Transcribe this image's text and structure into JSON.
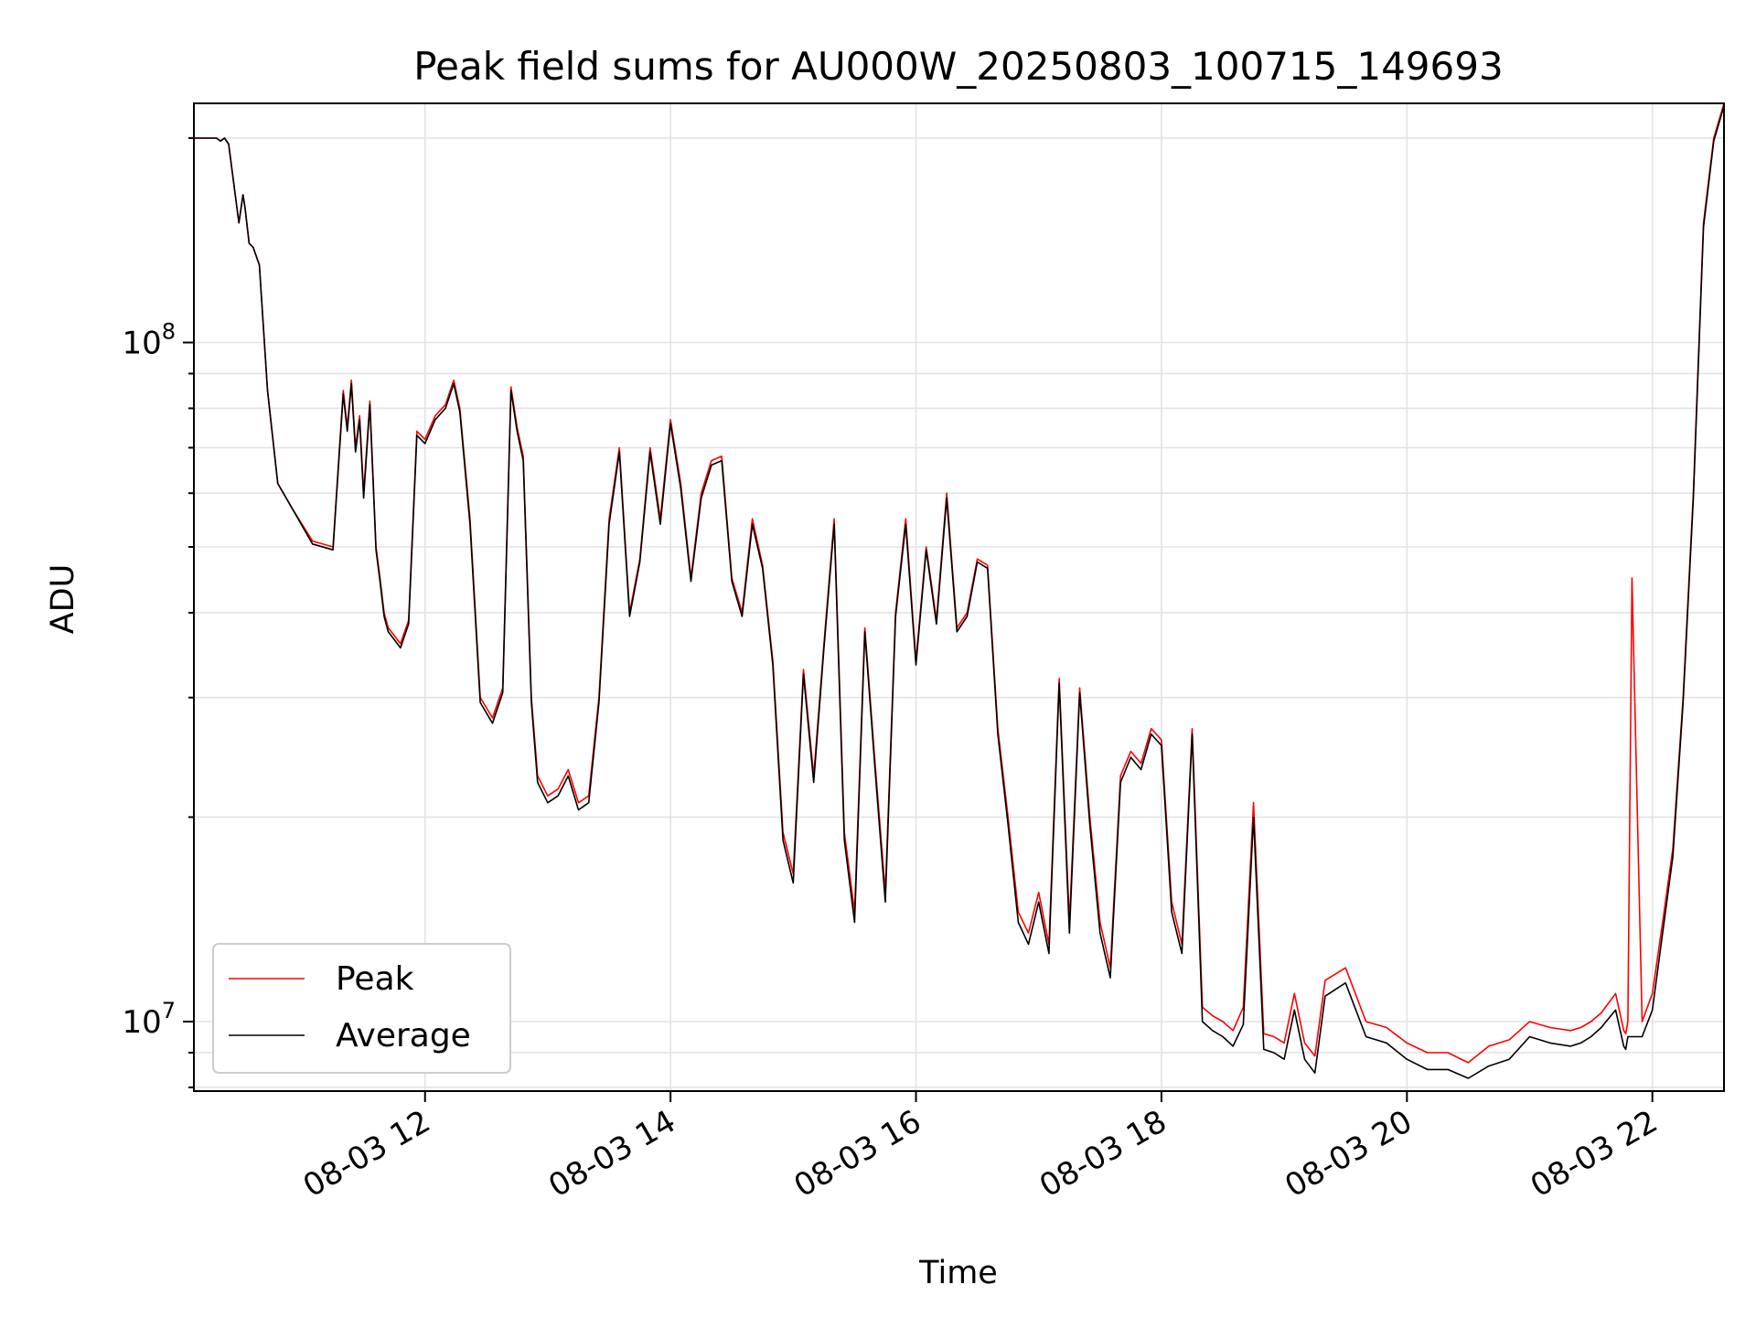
{
  "chart_data": {
    "type": "line",
    "title": "Peak field sums for AU000W_20250803_100715_149693",
    "xlabel": "Time",
    "ylabel": "ADU",
    "yscale": "log",
    "ylim": [
      7900000,
      225000000
    ],
    "xlim": [
      "2025-08-03T10:07",
      "2025-08-03T22:35"
    ],
    "grid": true,
    "legend_placement": "lower-left",
    "x_ticks": [
      "2025-08-03T12:00",
      "2025-08-03T14:00",
      "2025-08-03T16:00",
      "2025-08-03T18:00",
      "2025-08-03T20:00",
      "2025-08-03T22:00"
    ],
    "x_tick_labels": [
      "08-03 12",
      "08-03 14",
      "08-03 16",
      "08-03 18",
      "08-03 20",
      "08-03 22"
    ],
    "y_ticks": [
      10000000,
      100000000
    ],
    "y_tick_base": "10",
    "y_tick_exponents": [
      "7",
      "8"
    ],
    "series": [
      {
        "name": "Peak",
        "color": "#ff0000",
        "x": [
          "2025-08-03T10:07",
          "2025-08-03T10:18",
          "2025-08-03T10:20",
          "2025-08-03T10:22",
          "2025-08-03T10:24",
          "2025-08-03T10:29",
          "2025-08-03T10:31",
          "2025-08-03T10:32",
          "2025-08-03T10:34",
          "2025-08-03T10:36",
          "2025-08-03T10:39",
          "2025-08-03T10:43",
          "2025-08-03T10:48",
          "2025-08-03T10:55",
          "2025-08-03T11:05",
          "2025-08-03T11:15",
          "2025-08-03T11:20",
          "2025-08-03T11:22",
          "2025-08-03T11:24",
          "2025-08-03T11:26",
          "2025-08-03T11:28",
          "2025-08-03T11:30",
          "2025-08-03T11:33",
          "2025-08-03T11:36",
          "2025-08-03T11:38",
          "2025-08-03T11:40",
          "2025-08-03T11:42",
          "2025-08-03T11:45",
          "2025-08-03T11:48",
          "2025-08-03T11:52",
          "2025-08-03T11:56",
          "2025-08-03T12:00",
          "2025-08-03T12:05",
          "2025-08-03T12:10",
          "2025-08-03T12:14",
          "2025-08-03T12:17",
          "2025-08-03T12:22",
          "2025-08-03T12:27",
          "2025-08-03T12:33",
          "2025-08-03T12:38",
          "2025-08-03T12:42",
          "2025-08-03T12:45",
          "2025-08-03T12:48",
          "2025-08-03T12:52",
          "2025-08-03T12:55",
          "2025-08-03T13:00",
          "2025-08-03T13:05",
          "2025-08-03T13:10",
          "2025-08-03T13:15",
          "2025-08-03T13:20",
          "2025-08-03T13:25",
          "2025-08-03T13:30",
          "2025-08-03T13:35",
          "2025-08-03T13:40",
          "2025-08-03T13:45",
          "2025-08-03T13:50",
          "2025-08-03T13:55",
          "2025-08-03T14:00",
          "2025-08-03T14:05",
          "2025-08-03T14:10",
          "2025-08-03T14:15",
          "2025-08-03T14:20",
          "2025-08-03T14:25",
          "2025-08-03T14:30",
          "2025-08-03T14:35",
          "2025-08-03T14:40",
          "2025-08-03T14:45",
          "2025-08-03T14:50",
          "2025-08-03T14:55",
          "2025-08-03T15:00",
          "2025-08-03T15:05",
          "2025-08-03T15:10",
          "2025-08-03T15:15",
          "2025-08-03T15:20",
          "2025-08-03T15:25",
          "2025-08-03T15:30",
          "2025-08-03T15:35",
          "2025-08-03T15:40",
          "2025-08-03T15:45",
          "2025-08-03T15:50",
          "2025-08-03T15:55",
          "2025-08-03T16:00",
          "2025-08-03T16:05",
          "2025-08-03T16:10",
          "2025-08-03T16:15",
          "2025-08-03T16:20",
          "2025-08-03T16:25",
          "2025-08-03T16:30",
          "2025-08-03T16:35",
          "2025-08-03T16:40",
          "2025-08-03T16:45",
          "2025-08-03T16:50",
          "2025-08-03T16:55",
          "2025-08-03T17:00",
          "2025-08-03T17:05",
          "2025-08-03T17:10",
          "2025-08-03T17:15",
          "2025-08-03T17:20",
          "2025-08-03T17:25",
          "2025-08-03T17:30",
          "2025-08-03T17:35",
          "2025-08-03T17:40",
          "2025-08-03T17:45",
          "2025-08-03T17:50",
          "2025-08-03T17:55",
          "2025-08-03T18:00",
          "2025-08-03T18:05",
          "2025-08-03T18:10",
          "2025-08-03T18:15",
          "2025-08-03T18:20",
          "2025-08-03T18:25",
          "2025-08-03T18:30",
          "2025-08-03T18:35",
          "2025-08-03T18:40",
          "2025-08-03T18:45",
          "2025-08-03T18:50",
          "2025-08-03T18:55",
          "2025-08-03T19:00",
          "2025-08-03T19:05",
          "2025-08-03T19:10",
          "2025-08-03T19:15",
          "2025-08-03T19:20",
          "2025-08-03T19:30",
          "2025-08-03T19:40",
          "2025-08-03T19:50",
          "2025-08-03T20:00",
          "2025-08-03T20:10",
          "2025-08-03T20:20",
          "2025-08-03T20:30",
          "2025-08-03T20:40",
          "2025-08-03T20:50",
          "2025-08-03T21:00",
          "2025-08-03T21:10",
          "2025-08-03T21:20",
          "2025-08-03T21:25",
          "2025-08-03T21:30",
          "2025-08-03T21:35",
          "2025-08-03T21:42",
          "2025-08-03T21:46",
          "2025-08-03T21:47",
          "2025-08-03T21:48",
          "2025-08-03T21:50",
          "2025-08-03T21:55",
          "2025-08-03T22:00",
          "2025-08-03T22:05",
          "2025-08-03T22:10",
          "2025-08-03T22:15",
          "2025-08-03T22:20",
          "2025-08-03T22:25",
          "2025-08-03T22:30",
          "2025-08-03T22:35"
        ],
        "values": [
          200000000,
          200000000,
          198000000,
          200000000,
          196000000,
          150000000,
          165000000,
          158000000,
          140000000,
          138000000,
          130000000,
          85000000,
          62000000,
          57000000,
          51000000,
          50000000,
          85000000,
          75000000,
          88000000,
          70000000,
          78000000,
          60000000,
          82000000,
          50000000,
          45000000,
          40000000,
          38000000,
          37000000,
          36000000,
          39000000,
          74000000,
          72000000,
          78000000,
          81000000,
          88000000,
          80000000,
          55000000,
          30000000,
          28000000,
          31000000,
          86000000,
          75000000,
          68000000,
          30000000,
          23000000,
          21500000,
          22000000,
          23500000,
          21000000,
          21500000,
          30000000,
          55000000,
          70000000,
          40000000,
          48000000,
          70000000,
          55000000,
          77000000,
          62000000,
          45000000,
          60000000,
          67000000,
          68000000,
          45000000,
          40000000,
          55000000,
          47000000,
          34000000,
          19000000,
          16500000,
          33000000,
          23000000,
          36000000,
          55000000,
          19000000,
          14500000,
          38000000,
          24000000,
          15500000,
          40000000,
          55000000,
          34000000,
          50000000,
          39000000,
          60000000,
          38000000,
          40000000,
          48000000,
          47000000,
          27000000,
          20000000,
          14500000,
          13500000,
          15500000,
          13000000,
          32000000,
          14000000,
          31000000,
          20000000,
          14000000,
          12000000,
          23000000,
          25000000,
          24000000,
          27000000,
          26000000,
          15000000,
          13000000,
          27000000,
          10500000,
          10200000,
          10000000,
          9700000,
          10500000,
          21000000,
          9600000,
          9500000,
          9300000,
          11000000,
          9300000,
          8900000,
          11500000,
          12000000,
          10000000,
          9800000,
          9300000,
          9000000,
          9000000,
          8700000,
          9200000,
          9400000,
          10000000,
          9800000,
          9700000,
          9800000,
          10000000,
          10300000,
          11000000,
          9700000,
          9600000,
          10000000,
          45000000,
          10000000,
          11000000,
          14000000,
          18000000,
          30000000,
          60000000,
          150000000,
          200000000,
          225000000
        ]
      },
      {
        "name": "Average",
        "color": "#000000",
        "x": [
          "2025-08-03T10:07",
          "2025-08-03T10:18",
          "2025-08-03T10:20",
          "2025-08-03T10:22",
          "2025-08-03T10:24",
          "2025-08-03T10:29",
          "2025-08-03T10:31",
          "2025-08-03T10:32",
          "2025-08-03T10:34",
          "2025-08-03T10:36",
          "2025-08-03T10:39",
          "2025-08-03T10:43",
          "2025-08-03T10:48",
          "2025-08-03T10:55",
          "2025-08-03T11:05",
          "2025-08-03T11:15",
          "2025-08-03T11:20",
          "2025-08-03T11:22",
          "2025-08-03T11:24",
          "2025-08-03T11:26",
          "2025-08-03T11:28",
          "2025-08-03T11:30",
          "2025-08-03T11:33",
          "2025-08-03T11:36",
          "2025-08-03T11:38",
          "2025-08-03T11:40",
          "2025-08-03T11:42",
          "2025-08-03T11:45",
          "2025-08-03T11:48",
          "2025-08-03T11:52",
          "2025-08-03T11:56",
          "2025-08-03T12:00",
          "2025-08-03T12:05",
          "2025-08-03T12:10",
          "2025-08-03T12:14",
          "2025-08-03T12:17",
          "2025-08-03T12:22",
          "2025-08-03T12:27",
          "2025-08-03T12:33",
          "2025-08-03T12:38",
          "2025-08-03T12:42",
          "2025-08-03T12:45",
          "2025-08-03T12:48",
          "2025-08-03T12:52",
          "2025-08-03T12:55",
          "2025-08-03T13:00",
          "2025-08-03T13:05",
          "2025-08-03T13:10",
          "2025-08-03T13:15",
          "2025-08-03T13:20",
          "2025-08-03T13:25",
          "2025-08-03T13:30",
          "2025-08-03T13:35",
          "2025-08-03T13:40",
          "2025-08-03T13:45",
          "2025-08-03T13:50",
          "2025-08-03T13:55",
          "2025-08-03T14:00",
          "2025-08-03T14:05",
          "2025-08-03T14:10",
          "2025-08-03T14:15",
          "2025-08-03T14:20",
          "2025-08-03T14:25",
          "2025-08-03T14:30",
          "2025-08-03T14:35",
          "2025-08-03T14:40",
          "2025-08-03T14:45",
          "2025-08-03T14:50",
          "2025-08-03T14:55",
          "2025-08-03T15:00",
          "2025-08-03T15:05",
          "2025-08-03T15:10",
          "2025-08-03T15:15",
          "2025-08-03T15:20",
          "2025-08-03T15:25",
          "2025-08-03T15:30",
          "2025-08-03T15:35",
          "2025-08-03T15:40",
          "2025-08-03T15:45",
          "2025-08-03T15:50",
          "2025-08-03T15:55",
          "2025-08-03T16:00",
          "2025-08-03T16:05",
          "2025-08-03T16:10",
          "2025-08-03T16:15",
          "2025-08-03T16:20",
          "2025-08-03T16:25",
          "2025-08-03T16:30",
          "2025-08-03T16:35",
          "2025-08-03T16:40",
          "2025-08-03T16:45",
          "2025-08-03T16:50",
          "2025-08-03T16:55",
          "2025-08-03T17:00",
          "2025-08-03T17:05",
          "2025-08-03T17:10",
          "2025-08-03T17:15",
          "2025-08-03T17:20",
          "2025-08-03T17:25",
          "2025-08-03T17:30",
          "2025-08-03T17:35",
          "2025-08-03T17:40",
          "2025-08-03T17:45",
          "2025-08-03T17:50",
          "2025-08-03T17:55",
          "2025-08-03T18:00",
          "2025-08-03T18:05",
          "2025-08-03T18:10",
          "2025-08-03T18:15",
          "2025-08-03T18:20",
          "2025-08-03T18:25",
          "2025-08-03T18:30",
          "2025-08-03T18:35",
          "2025-08-03T18:40",
          "2025-08-03T18:45",
          "2025-08-03T18:50",
          "2025-08-03T18:55",
          "2025-08-03T19:00",
          "2025-08-03T19:05",
          "2025-08-03T19:10",
          "2025-08-03T19:15",
          "2025-08-03T19:20",
          "2025-08-03T19:30",
          "2025-08-03T19:40",
          "2025-08-03T19:50",
          "2025-08-03T20:00",
          "2025-08-03T20:10",
          "2025-08-03T20:20",
          "2025-08-03T20:30",
          "2025-08-03T20:40",
          "2025-08-03T20:50",
          "2025-08-03T21:00",
          "2025-08-03T21:10",
          "2025-08-03T21:20",
          "2025-08-03T21:25",
          "2025-08-03T21:30",
          "2025-08-03T21:35",
          "2025-08-03T21:42",
          "2025-08-03T21:46",
          "2025-08-03T21:47",
          "2025-08-03T21:48",
          "2025-08-03T21:50",
          "2025-08-03T21:55",
          "2025-08-03T22:00",
          "2025-08-03T22:05",
          "2025-08-03T22:10",
          "2025-08-03T22:15",
          "2025-08-03T22:20",
          "2025-08-03T22:25",
          "2025-08-03T22:30",
          "2025-08-03T22:35"
        ],
        "values": [
          200000000,
          200000000,
          198000000,
          200000000,
          196000000,
          150000000,
          165000000,
          158000000,
          140000000,
          138000000,
          130000000,
          85000000,
          62000000,
          57000000,
          50500000,
          49500000,
          84000000,
          74000000,
          87000000,
          69000000,
          77000000,
          59000000,
          81000000,
          49500000,
          44500000,
          39500000,
          37500000,
          36500000,
          35500000,
          38500000,
          73000000,
          71000000,
          77000000,
          80000000,
          87000000,
          79000000,
          54000000,
          29500000,
          27500000,
          30500000,
          85000000,
          74000000,
          67000000,
          29500000,
          22500000,
          21000000,
          21500000,
          23000000,
          20500000,
          21000000,
          29500000,
          54000000,
          69000000,
          39500000,
          47500000,
          69000000,
          54000000,
          76000000,
          61000000,
          44500000,
          59000000,
          66000000,
          67000000,
          44500000,
          39500000,
          54000000,
          46500000,
          33500000,
          18500000,
          16000000,
          32500000,
          22500000,
          35500000,
          54000000,
          18500000,
          14000000,
          37500000,
          23500000,
          15000000,
          39500000,
          54000000,
          33500000,
          49500000,
          38500000,
          59000000,
          37500000,
          39500000,
          47500000,
          46500000,
          26500000,
          19500000,
          14000000,
          13000000,
          15000000,
          12600000,
          31500000,
          13500000,
          30500000,
          19500000,
          13500000,
          11600000,
          22500000,
          24500000,
          23500000,
          26500000,
          25500000,
          14500000,
          12600000,
          26500000,
          10000000,
          9700000,
          9500000,
          9200000,
          9900000,
          20000000,
          9100000,
          9000000,
          8800000,
          10400000,
          8800000,
          8400000,
          10900000,
          11400000,
          9500000,
          9300000,
          8800000,
          8500000,
          8500000,
          8250000,
          8600000,
          8800000,
          9500000,
          9300000,
          9200000,
          9300000,
          9500000,
          9800000,
          10400000,
          9200000,
          9100000,
          9500000,
          9500000,
          9500000,
          10400000,
          13500000,
          17500000,
          29500000,
          59000000,
          148000000,
          198000000,
          223000000
        ]
      }
    ]
  }
}
